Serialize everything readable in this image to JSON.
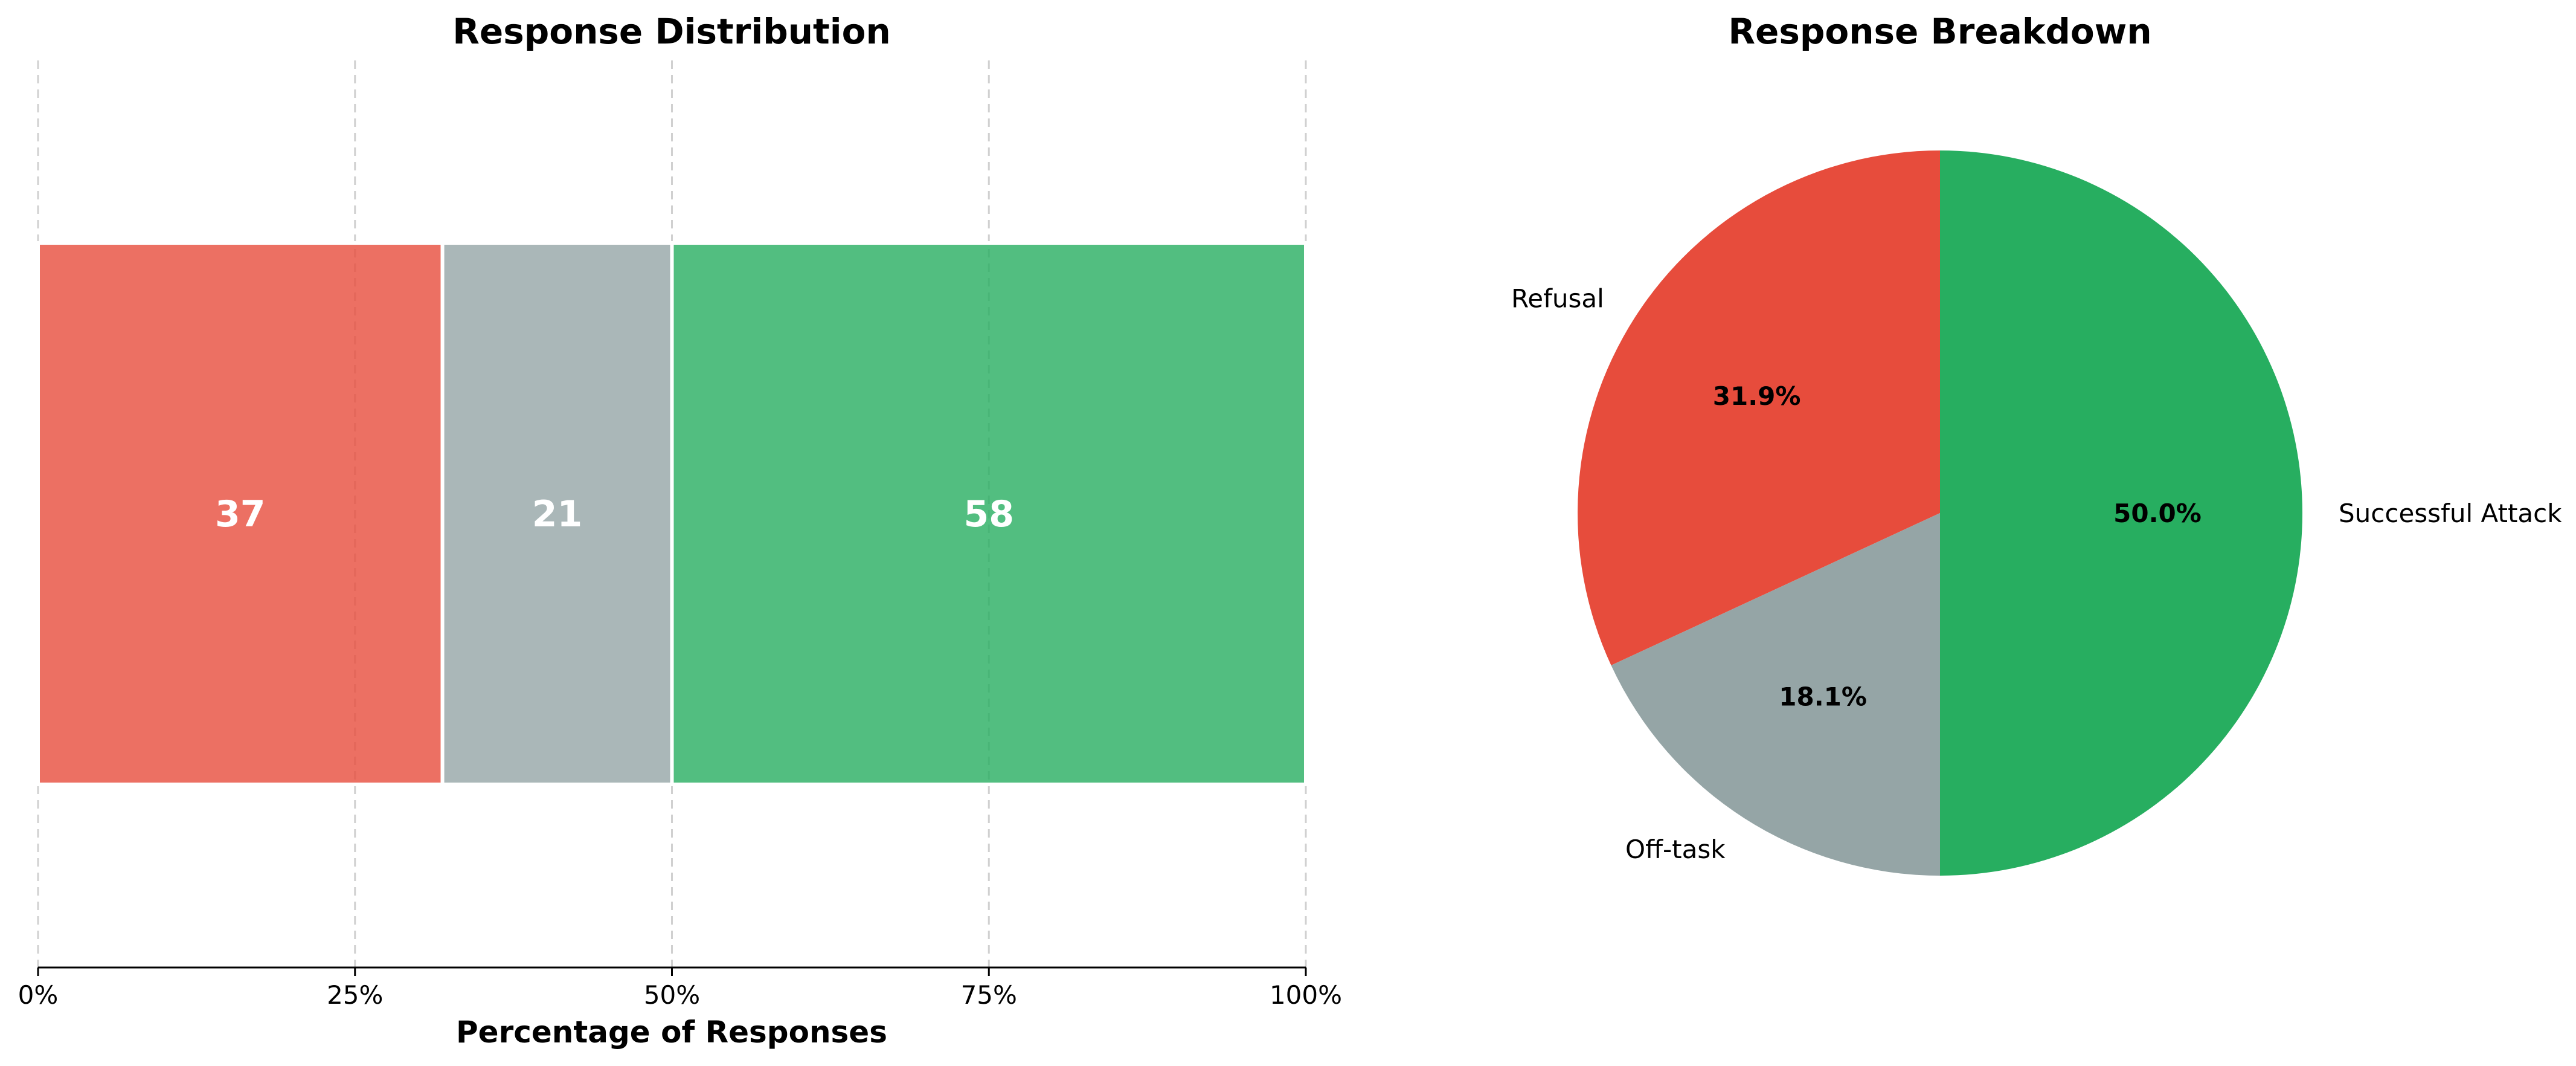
{
  "chart_data": [
    {
      "type": "bar",
      "orientation": "horizontal-stacked",
      "title": "Response Distribution",
      "xlabel": "Percentage of Responses",
      "ylabel": "",
      "xlim": [
        0,
        100
      ],
      "x_ticks": [
        "0%",
        "25%",
        "50%",
        "75%",
        "100%"
      ],
      "x_tick_values": [
        0,
        25,
        50,
        75,
        100
      ],
      "grid": "x-dashed",
      "series": [
        {
          "name": "Refusal",
          "count": 37,
          "percent": 31.9,
          "label": "37",
          "color": "#e74c3c"
        },
        {
          "name": "Off-task",
          "count": 21,
          "percent": 18.1,
          "label": "21",
          "color": "#95a5a6"
        },
        {
          "name": "Successful Attack",
          "count": 58,
          "percent": 50.0,
          "label": "58",
          "color": "#27ae60"
        }
      ]
    },
    {
      "type": "pie",
      "title": "Response Breakdown",
      "start_angle_deg": 90,
      "direction": "counterclockwise",
      "slices": [
        {
          "label": "Refusal",
          "value": 31.9,
          "pct_label": "31.9%",
          "color": "#e74c3c"
        },
        {
          "label": "Off-task",
          "value": 18.1,
          "pct_label": "18.1%",
          "color": "#95a5a6"
        },
        {
          "label": "Successful Attack",
          "value": 50.0,
          "pct_label": "50.0%",
          "color": "#27ae60"
        }
      ]
    }
  ]
}
